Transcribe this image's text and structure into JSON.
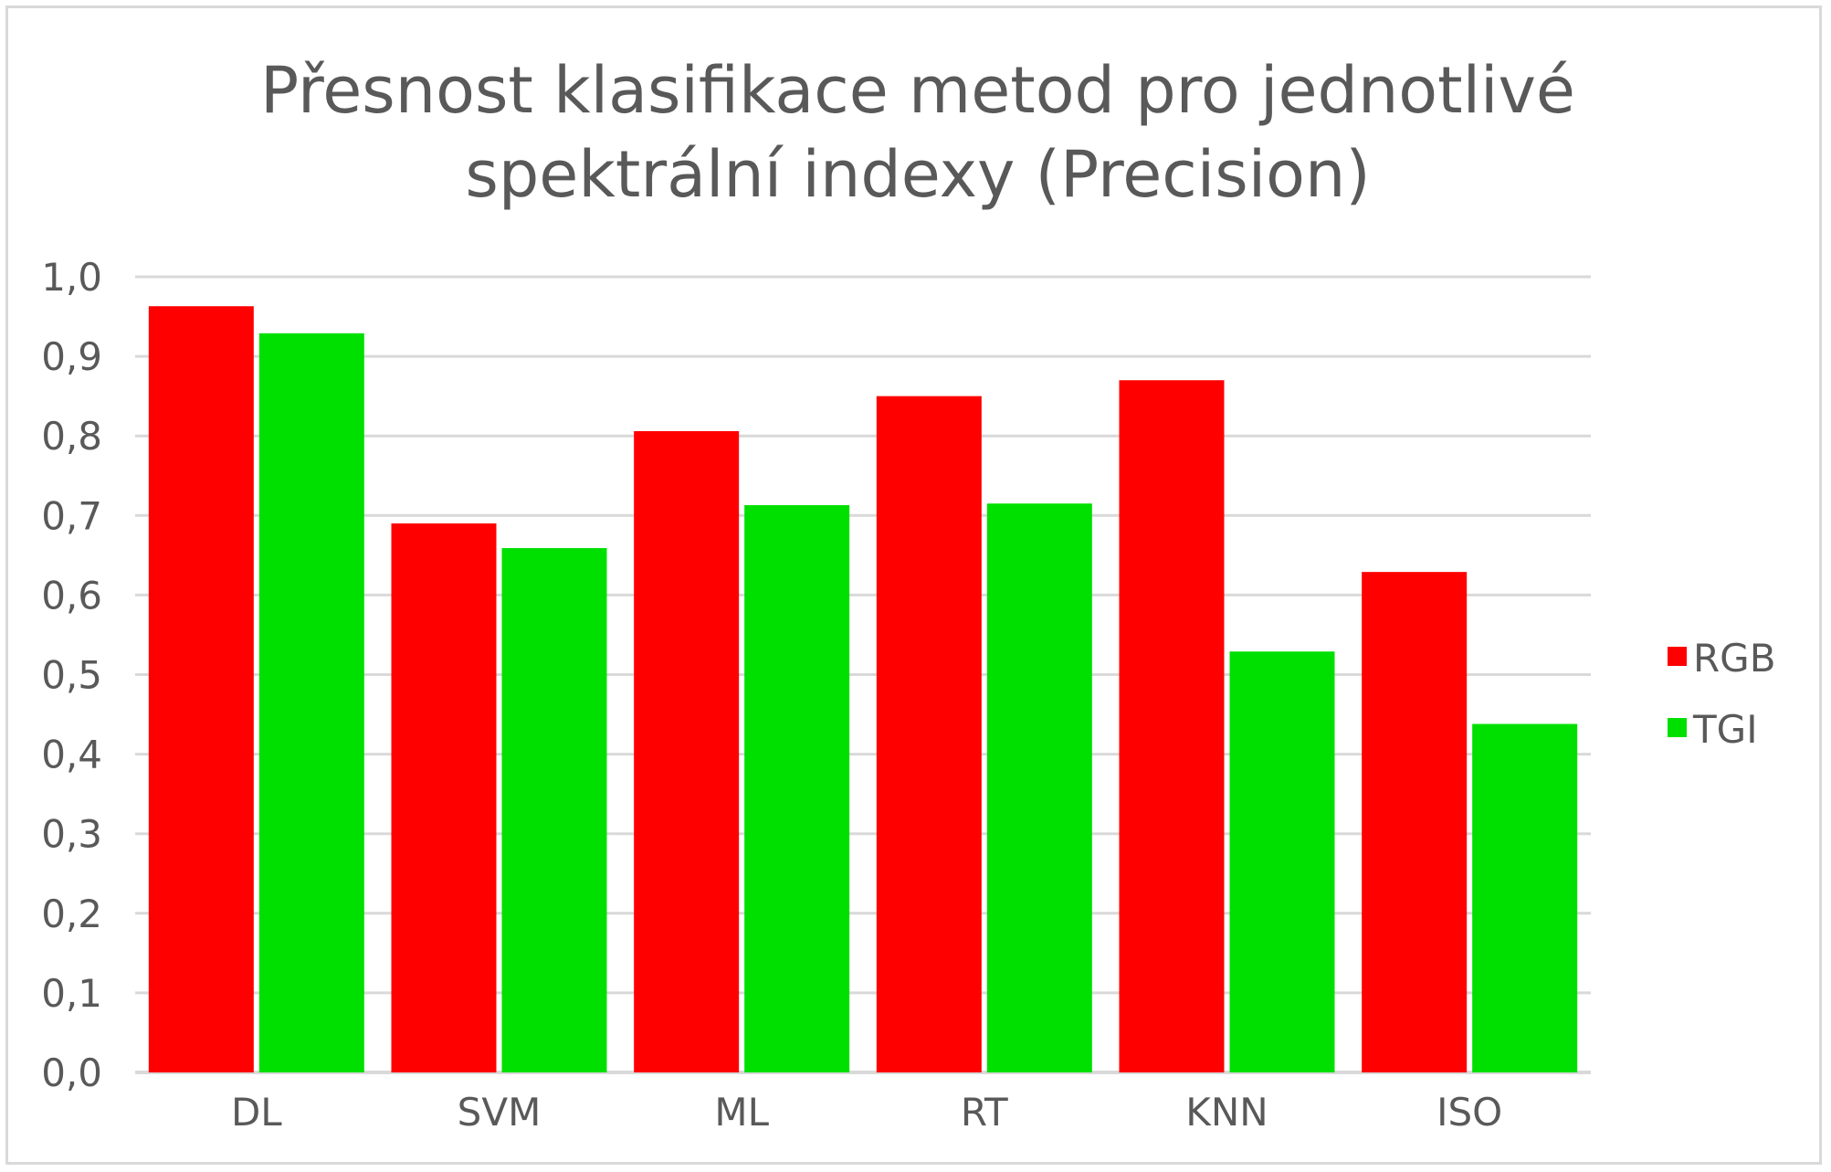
{
  "chart_data": {
    "type": "bar",
    "title_lines": [
      "Přesnost klasifikace metod pro jednotlivé",
      "spektrální indexy (Precision)"
    ],
    "categories": [
      "DL",
      "SVM",
      "ML",
      "RT",
      "KNN",
      "ISO"
    ],
    "series": [
      {
        "name": "RGB",
        "color": "#ff0000",
        "values": [
          0.963,
          0.69,
          0.806,
          0.85,
          0.87,
          0.629
        ]
      },
      {
        "name": "TGI",
        "color": "#00e000",
        "values": [
          0.929,
          0.659,
          0.713,
          0.715,
          0.529,
          0.438
        ]
      }
    ],
    "ylim": [
      0,
      1
    ],
    "yticks": [
      "0,0",
      "0,1",
      "0,2",
      "0,3",
      "0,4",
      "0,5",
      "0,6",
      "0,7",
      "0,8",
      "0,9",
      "1,0"
    ],
    "grid": true,
    "legend_position": "right",
    "gridline_color": "#d9d9d9",
    "axis_text_color": "#595959"
  }
}
